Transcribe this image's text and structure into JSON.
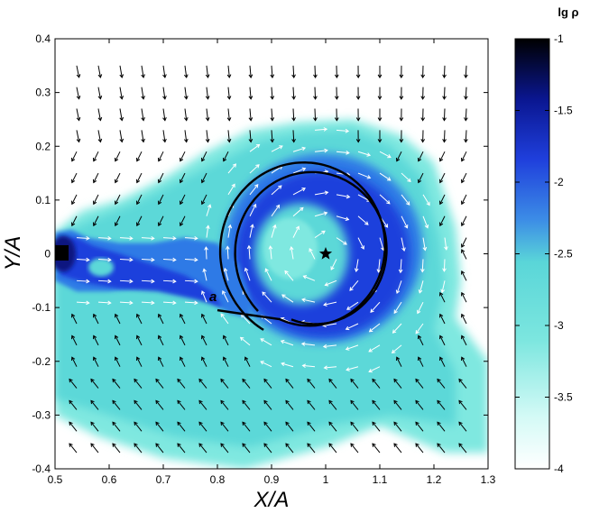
{
  "chart_data": {
    "type": "heatmap",
    "xlabel": "X/A",
    "ylabel": "Y/A",
    "xlim": [
      0.5,
      1.3
    ],
    "ylim": [
      -0.4,
      0.4
    ],
    "x_ticks": [
      "0.5",
      "0.6",
      "0.7",
      "0.8",
      "0.9",
      "1",
      "1.1",
      "1.2",
      "1.3"
    ],
    "y_ticks": [
      "0.4",
      "0.3",
      "0.2",
      "0.1",
      "0",
      "-0.1",
      "-0.2",
      "-0.3",
      "-0.4"
    ],
    "colorbar": {
      "title": "lg ρ",
      "range": [
        -4,
        -1
      ],
      "ticks": [
        "-1",
        "-1.5",
        "-2",
        "-2.5",
        "-3",
        "-3.5",
        "-4"
      ]
    },
    "star_marker": {
      "x": 1.0,
      "y": 0.0
    },
    "accretor": {
      "x": 0.51,
      "y": 0.0
    },
    "trajectory_label": "a",
    "trajectory_label_pos": {
      "x": 0.785,
      "y": -0.088
    },
    "colors": {
      "cmap": [
        "#ffffff",
        "#ccfaf4",
        "#7fe8e0",
        "#5bd8d8",
        "#2f7ae6",
        "#1f3fdc",
        "#0a1680",
        "#000000"
      ],
      "white_arrows": "#ffffff",
      "black_arrows": "#000000",
      "trajectory": "#000000"
    }
  }
}
